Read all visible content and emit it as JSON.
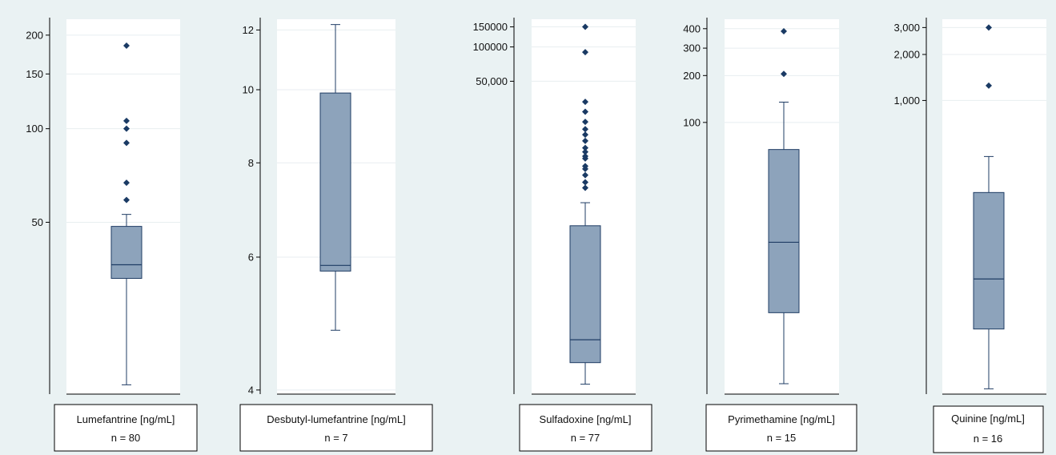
{
  "chart_data": [
    {
      "type": "box",
      "scale": "log",
      "grid": true,
      "ylim": [
        14,
        225
      ],
      "yticks": [
        200,
        150,
        100,
        50
      ],
      "ytick_labels": [
        "200",
        "150",
        "100",
        "50"
      ],
      "box": {
        "min": 15,
        "q1": 33,
        "median": 36.5,
        "q3": 48.5,
        "max": 53
      },
      "outliers": [
        185,
        106,
        100,
        90,
        67,
        59
      ],
      "caption": {
        "label": "Lumefantrine [ng/mL]",
        "n": "n = 80"
      }
    },
    {
      "type": "box",
      "scale": "log",
      "grid": true,
      "ylim": [
        3.95,
        12.4
      ],
      "yticks": [
        12,
        10,
        8,
        6,
        4
      ],
      "ytick_labels": [
        "12",
        "10",
        "8",
        "6",
        "4"
      ],
      "box": {
        "min": 4.8,
        "q1": 5.75,
        "median": 5.85,
        "q3": 9.9,
        "max": 12.2
      },
      "outliers": [],
      "caption": {
        "label": "Desbutyl-lumefantrine [ng/mL]",
        "n": "n = 7"
      }
    },
    {
      "type": "box",
      "scale": "log",
      "grid": true,
      "ylim": [
        90,
        175000
      ],
      "yticks": [
        150000,
        100000,
        50000
      ],
      "ytick_labels": [
        "150000",
        "100000",
        "50,000"
      ],
      "box": {
        "min": 110,
        "q1": 170,
        "median": 270,
        "q3": 2700,
        "max": 4300
      },
      "outliers": [
        150000,
        90000,
        33000,
        27000,
        22000,
        19000,
        17000,
        15000,
        13000,
        12000,
        11000,
        10500,
        9000,
        8500,
        7500,
        6500,
        5800
      ],
      "caption": {
        "label": "Sulfadoxine [ng/mL]",
        "n": "n = 77"
      }
    },
    {
      "type": "box",
      "scale": "log",
      "grid": true,
      "ylim": [
        1.8,
        460
      ],
      "yticks": [
        400,
        300,
        200,
        100
      ],
      "ytick_labels": [
        "400",
        "300",
        "200",
        "100"
      ],
      "box": {
        "min": 2.1,
        "q1": 6,
        "median": 17,
        "q3": 67,
        "max": 135
      },
      "outliers": [
        385,
        205
      ],
      "caption": {
        "label": "Pyrimethamine [ng/mL]",
        "n": "n = 15"
      }
    },
    {
      "type": "box",
      "scale": "log",
      "grid": true,
      "ylim": [
        12,
        3400
      ],
      "yticks": [
        3000,
        2000,
        1000
      ],
      "ytick_labels": [
        "3,000",
        "2,000",
        "1,000"
      ],
      "box": {
        "min": 13,
        "q1": 32,
        "median": 68,
        "q3": 250,
        "max": 430
      },
      "outliers": [
        3000,
        1250
      ],
      "caption": {
        "label": "Quinine [ng/mL]",
        "n": "n = 16"
      }
    }
  ],
  "colors": {
    "background": "#eaf2f3",
    "plot": "#ffffff",
    "box_fill": "#8da3bb",
    "box_stroke": "#1f3c64",
    "marker": "#1a3a64",
    "grid": "#e8eef0",
    "axis": "#000000"
  }
}
